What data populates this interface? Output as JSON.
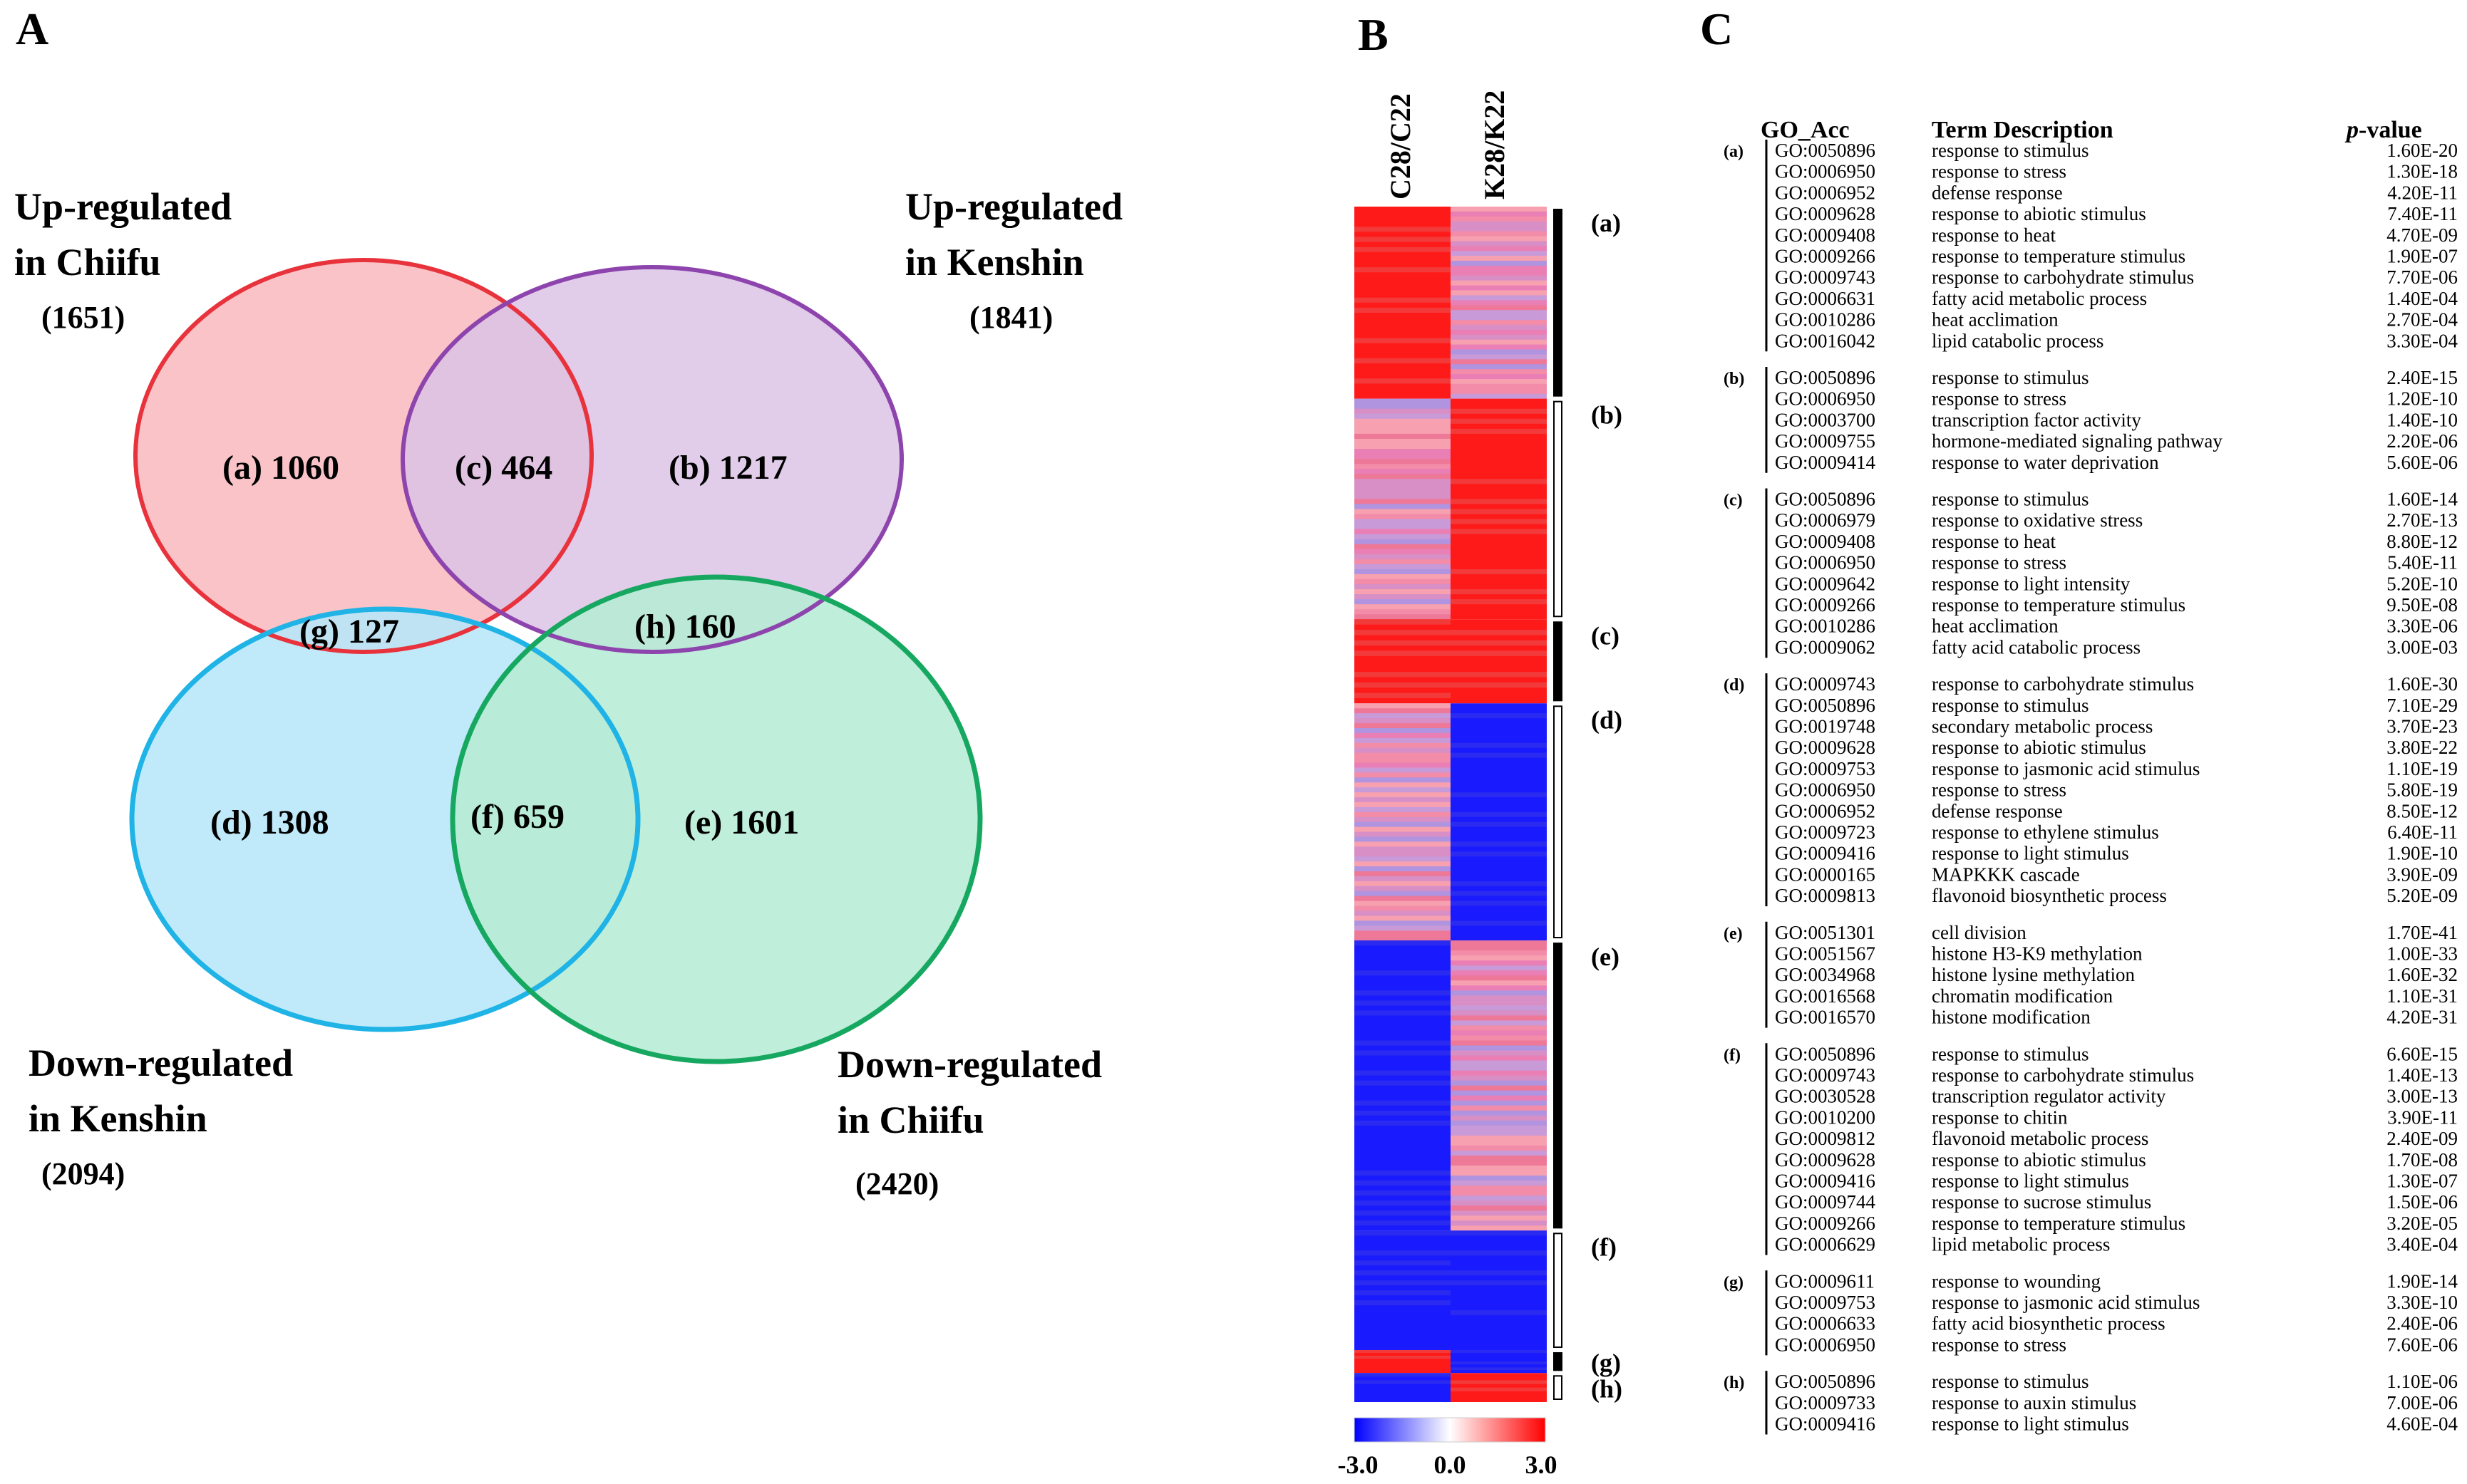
{
  "panels": {
    "a": "A",
    "b": "B",
    "c": "C"
  },
  "venn": {
    "sets": [
      {
        "line1": "Up-regulated",
        "line2": "in Chiifu",
        "count": "(1651)",
        "color": "#e8323c",
        "fill": "#f8b9bd"
      },
      {
        "line1": "Up-regulated",
        "line2": "in Kenshin",
        "count": "(1841)",
        "color": "#8e44ad",
        "fill": "#dcc3e6"
      },
      {
        "line1": "Down-regulated",
        "line2": "in Kenshin",
        "count": "(2094)",
        "color": "#1fb3e6",
        "fill": "#b9e8f8"
      },
      {
        "line1": "Down-regulated",
        "line2": "in Chiifu",
        "count": "(2420)",
        "color": "#16a860",
        "fill": "#b8ecd6"
      }
    ],
    "regions": {
      "a": "(a) 1060",
      "b": "(b) 1217",
      "c": "(c) 464",
      "d": "(d) 1308",
      "e": "(e) 1601",
      "f": "(f) 659",
      "g": "(g) 127",
      "h": "(h) 160"
    }
  },
  "heatmap": {
    "columns": [
      "C28/C22",
      "K28/K22"
    ],
    "cluster_labels": [
      "(a)",
      "(b)",
      "(c)",
      "(d)",
      "(e)",
      "(f)",
      "(g)",
      "(h)"
    ],
    "clusters": [
      {
        "label": "(a)",
        "size": 1060,
        "c": "red",
        "k": "mixed"
      },
      {
        "label": "(b)",
        "size": 1217,
        "c": "mixed",
        "k": "red"
      },
      {
        "label": "(c)",
        "size": 464,
        "c": "red",
        "k": "red"
      },
      {
        "label": "(d)",
        "size": 1308,
        "c": "mixed",
        "k": "blue"
      },
      {
        "label": "(e)",
        "size": 1601,
        "c": "blue",
        "k": "mixed"
      },
      {
        "label": "(f)",
        "size": 659,
        "c": "blue",
        "k": "blue"
      },
      {
        "label": "(g)",
        "size": 127,
        "c": "red",
        "k": "blue"
      },
      {
        "label": "(h)",
        "size": 160,
        "c": "blue",
        "k": "red"
      }
    ],
    "legend": {
      "min": "-3.0",
      "mid": "0.0",
      "max": "3.0",
      "low_color": "#0000ff",
      "high_color": "#ff0000"
    }
  },
  "go_table": {
    "headers": {
      "acc": "GO_Acc",
      "term": "Term Description",
      "pvalue_p": "p",
      "pvalue_rest": "-value"
    },
    "groups": [
      {
        "label": "(a)",
        "rows": [
          [
            "GO:0050896",
            "response to stimulus",
            "1.60E-20"
          ],
          [
            "GO:0006950",
            "response to stress",
            "1.30E-18"
          ],
          [
            "GO:0006952",
            "defense response",
            "4.20E-11"
          ],
          [
            "GO:0009628",
            "response to abiotic stimulus",
            "7.40E-11"
          ],
          [
            "GO:0009408",
            "response to heat",
            "4.70E-09"
          ],
          [
            "GO:0009266",
            "response to temperature stimulus",
            "1.90E-07"
          ],
          [
            "GO:0009743",
            "response to carbohydrate stimulus",
            "7.70E-06"
          ],
          [
            "GO:0006631",
            "fatty acid metabolic process",
            "1.40E-04"
          ],
          [
            "GO:0010286",
            "heat acclimation",
            "2.70E-04"
          ],
          [
            "GO:0016042",
            "lipid catabolic process",
            "3.30E-04"
          ]
        ]
      },
      {
        "label": "(b)",
        "rows": [
          [
            "GO:0050896",
            "response to stimulus",
            "2.40E-15"
          ],
          [
            "GO:0006950",
            "response to stress",
            "1.20E-10"
          ],
          [
            "GO:0003700",
            "transcription factor activity",
            "1.40E-10"
          ],
          [
            "GO:0009755",
            "hormone-mediated signaling pathway",
            "2.20E-06"
          ],
          [
            "GO:0009414",
            "response to water deprivation",
            "5.60E-06"
          ]
        ]
      },
      {
        "label": "(c)",
        "rows": [
          [
            "GO:0050896",
            "response to stimulus",
            "1.60E-14"
          ],
          [
            "GO:0006979",
            "response to oxidative stress",
            "2.70E-13"
          ],
          [
            "GO:0009408",
            "response to heat",
            "8.80E-12"
          ],
          [
            "GO:0006950",
            "response to stress",
            "5.40E-11"
          ],
          [
            "GO:0009642",
            "response to light intensity",
            "5.20E-10"
          ],
          [
            "GO:0009266",
            "response to temperature stimulus",
            "9.50E-08"
          ],
          [
            "GO:0010286",
            "heat acclimation",
            "3.30E-06"
          ],
          [
            "GO:0009062",
            "fatty acid catabolic process",
            "3.00E-03"
          ]
        ]
      },
      {
        "label": "(d)",
        "rows": [
          [
            "GO:0009743",
            "response to carbohydrate stimulus",
            "1.60E-30"
          ],
          [
            "GO:0050896",
            "response to stimulus",
            "7.10E-29"
          ],
          [
            "GO:0019748",
            "secondary metabolic process",
            "3.70E-23"
          ],
          [
            "GO:0009628",
            "response to abiotic stimulus",
            "3.80E-22"
          ],
          [
            "GO:0009753",
            "response to jasmonic acid stimulus",
            "1.10E-19"
          ],
          [
            "GO:0006950",
            "response to stress",
            "5.80E-19"
          ],
          [
            "GO:0006952",
            "defense response",
            "8.50E-12"
          ],
          [
            "GO:0009723",
            "response to ethylene stimulus",
            "6.40E-11"
          ],
          [
            "GO:0009416",
            "response to light stimulus",
            "1.90E-10"
          ],
          [
            "GO:0000165",
            "MAPKKK cascade",
            "3.90E-09"
          ],
          [
            "GO:0009813",
            "flavonoid biosynthetic process",
            "5.20E-09"
          ]
        ]
      },
      {
        "label": "(e)",
        "rows": [
          [
            "GO:0051301",
            "cell division",
            "1.70E-41"
          ],
          [
            "GO:0051567",
            "histone H3-K9 methylation",
            "1.00E-33"
          ],
          [
            "GO:0034968",
            "histone lysine methylation",
            "1.60E-32"
          ],
          [
            "GO:0016568",
            "chromatin modification",
            "1.10E-31"
          ],
          [
            "GO:0016570",
            "histone modification",
            "4.20E-31"
          ]
        ]
      },
      {
        "label": "(f)",
        "rows": [
          [
            "GO:0050896",
            "response to stimulus",
            "6.60E-15"
          ],
          [
            "GO:0009743",
            "response to carbohydrate stimulus",
            "1.40E-13"
          ],
          [
            "GO:0030528",
            "transcription regulator activity",
            "3.00E-13"
          ],
          [
            "GO:0010200",
            "response to chitin",
            "3.90E-11"
          ],
          [
            "GO:0009812",
            "flavonoid metabolic process",
            "2.40E-09"
          ],
          [
            "GO:0009628",
            "response to abiotic stimulus",
            "1.70E-08"
          ],
          [
            "GO:0009416",
            "response to light stimulus",
            "1.30E-07"
          ],
          [
            "GO:0009744",
            "response to sucrose stimulus",
            "1.50E-06"
          ],
          [
            "GO:0009266",
            "response to temperature stimulus",
            "3.20E-05"
          ],
          [
            "GO:0006629",
            "lipid metabolic process",
            "3.40E-04"
          ]
        ]
      },
      {
        "label": "(g)",
        "rows": [
          [
            "GO:0009611",
            "response to wounding",
            "1.90E-14"
          ],
          [
            "GO:0009753",
            "response to jasmonic acid stimulus",
            "3.30E-10"
          ],
          [
            "GO:0006633",
            "fatty acid biosynthetic process",
            "2.40E-06"
          ],
          [
            "GO:0006950",
            "response to stress",
            "7.60E-06"
          ]
        ]
      },
      {
        "label": "(h)",
        "rows": [
          [
            "GO:0050896",
            "response to stimulus",
            "1.10E-06"
          ],
          [
            "GO:0009733",
            "response to auxin stimulus",
            "7.00E-06"
          ],
          [
            "GO:0009416",
            "response to light stimulus",
            "4.60E-04"
          ]
        ]
      }
    ]
  }
}
